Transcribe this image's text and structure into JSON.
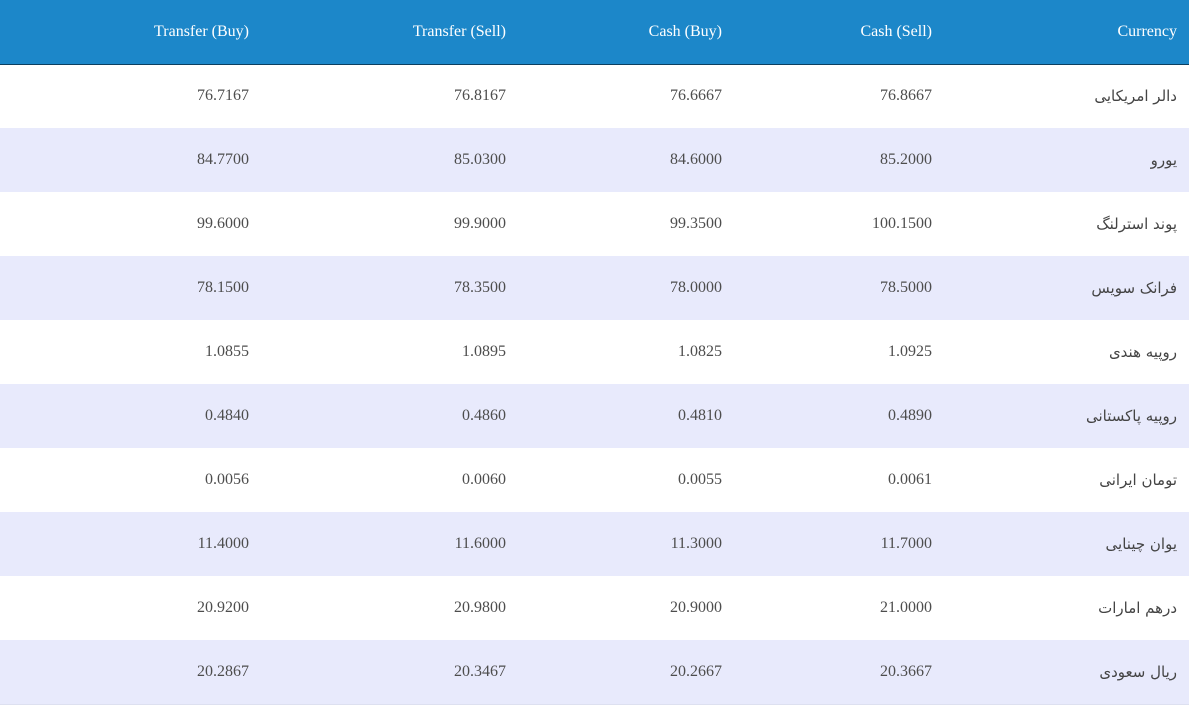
{
  "table": {
    "headers": {
      "transfer_buy": "Transfer (Buy)",
      "transfer_sell": "Transfer (Sell)",
      "cash_buy": "Cash (Buy)",
      "cash_sell": "Cash (Sell)",
      "currency": "Currency"
    },
    "rows": [
      {
        "transfer_buy": "76.7167",
        "transfer_sell": "76.8167",
        "cash_buy": "76.6667",
        "cash_sell": "76.8667",
        "currency": "دالر امریکایی"
      },
      {
        "transfer_buy": "84.7700",
        "transfer_sell": "85.0300",
        "cash_buy": "84.6000",
        "cash_sell": "85.2000",
        "currency": "یورو"
      },
      {
        "transfer_buy": "99.6000",
        "transfer_sell": "99.9000",
        "cash_buy": "99.3500",
        "cash_sell": "100.1500",
        "currency": "پوند استرلنگ"
      },
      {
        "transfer_buy": "78.1500",
        "transfer_sell": "78.3500",
        "cash_buy": "78.0000",
        "cash_sell": "78.5000",
        "currency": "فرانک سویس"
      },
      {
        "transfer_buy": "1.0855",
        "transfer_sell": "1.0895",
        "cash_buy": "1.0825",
        "cash_sell": "1.0925",
        "currency": "روپیه هندی"
      },
      {
        "transfer_buy": "0.4840",
        "transfer_sell": "0.4860",
        "cash_buy": "0.4810",
        "cash_sell": "0.4890",
        "currency": "روپیه پاکستانی"
      },
      {
        "transfer_buy": "0.0056",
        "transfer_sell": "0.0060",
        "cash_buy": "0.0055",
        "cash_sell": "0.0061",
        "currency": "تومان ایرانی"
      },
      {
        "transfer_buy": "11.4000",
        "transfer_sell": "11.6000",
        "cash_buy": "11.3000",
        "cash_sell": "11.7000",
        "currency": "یوان چینایی"
      },
      {
        "transfer_buy": "20.9200",
        "transfer_sell": "20.9800",
        "cash_buy": "20.9000",
        "cash_sell": "21.0000",
        "currency": "درهم امارات"
      },
      {
        "transfer_buy": "20.2867",
        "transfer_sell": "20.3467",
        "cash_buy": "20.2667",
        "cash_sell": "20.3667",
        "currency": "ریال سعودی"
      }
    ]
  }
}
